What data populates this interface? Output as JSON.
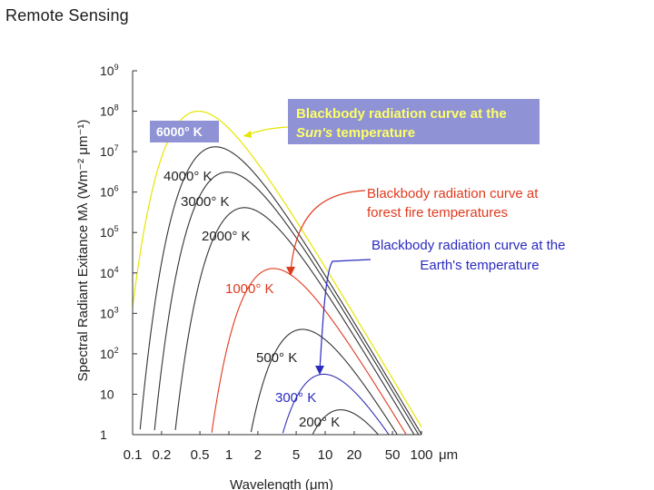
{
  "page": {
    "title": "Remote Sensing"
  },
  "chart_data": {
    "type": "line",
    "title": "",
    "xlabel": "Wavelength (μm)",
    "ylabel": "Spectral Radiant Exitance Mλ (Wm⁻² μm⁻¹)",
    "x_scale": "log",
    "y_scale": "log",
    "xlim": [
      0.1,
      100
    ],
    "ylim": [
      1,
      1000000000
    ],
    "x_ticks": [
      {
        "value": 0.1,
        "label": "0.1"
      },
      {
        "value": 0.2,
        "label": "0.2"
      },
      {
        "value": 0.5,
        "label": "0.5"
      },
      {
        "value": 1,
        "label": "1"
      },
      {
        "value": 2,
        "label": "2"
      },
      {
        "value": 5,
        "label": "5"
      },
      {
        "value": 10,
        "label": "10"
      },
      {
        "value": 20,
        "label": "20"
      },
      {
        "value": 50,
        "label": "50"
      },
      {
        "value": 100,
        "label": "100"
      }
    ],
    "x_unit_label": "μm",
    "y_ticks": [
      {
        "value": 1,
        "label": "1"
      },
      {
        "value": 10,
        "label": "10"
      },
      {
        "value": 100,
        "label": "10²"
      },
      {
        "value": 1000,
        "label": "10³"
      },
      {
        "value": 10000,
        "label": "10⁴"
      },
      {
        "value": 100000,
        "label": "10⁵"
      },
      {
        "value": 1000000,
        "label": "10⁶"
      },
      {
        "value": 10000000,
        "label": "10⁷"
      },
      {
        "value": 100000000,
        "label": "10⁸"
      },
      {
        "value": 1000000000,
        "label": "10⁹"
      }
    ],
    "grid": false,
    "series": [
      {
        "name": "6000° K",
        "temperature": 6000,
        "color": "#e6e600"
      },
      {
        "name": "4000° K",
        "temperature": 4000,
        "color": "#333333"
      },
      {
        "name": "3000° K",
        "temperature": 3000,
        "color": "#333333"
      },
      {
        "name": "2000° K",
        "temperature": 2000,
        "color": "#333333"
      },
      {
        "name": "1000° K",
        "temperature": 1000,
        "color": "#e03a1e"
      },
      {
        "name": "500° K",
        "temperature": 500,
        "color": "#333333"
      },
      {
        "name": "300° K",
        "temperature": 300,
        "color": "#3333b3"
      },
      {
        "name": "200° K",
        "temperature": 200,
        "color": "#333333"
      }
    ],
    "annotations": [
      {
        "id": "sun",
        "line1": "Blackbody radiation curve at the",
        "line2_em": "Sun's",
        "line2_rest": " temperature",
        "text_color": "#ffff66",
        "box_color": "#8f93d6"
      },
      {
        "id": "fire",
        "line1": "Blackbody radiation curve at",
        "line2": "forest fire temperatures",
        "text_color": "#e03a1e"
      },
      {
        "id": "earth",
        "line1": "Blackbody radiation curve at the",
        "line2": "Earth's temperature",
        "text_color": "#2b2bbf"
      }
    ]
  }
}
